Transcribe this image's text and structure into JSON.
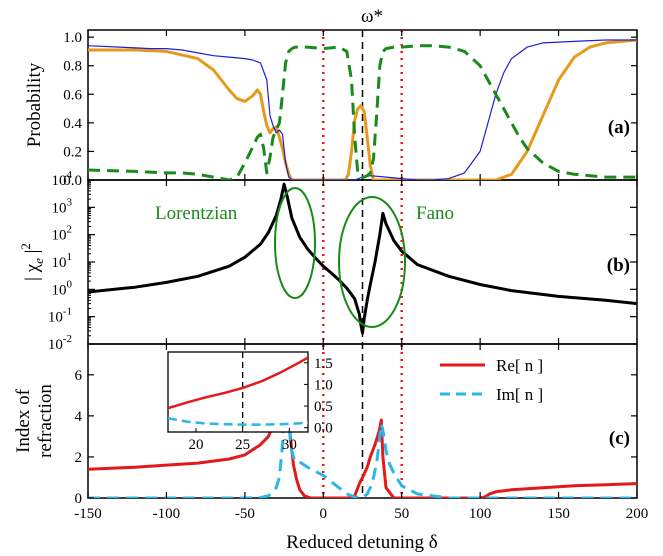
{
  "figure": {
    "x_label": "Reduced detuning δ",
    "omega_marker": "ω*",
    "x_ticks": [
      "-150",
      "-100",
      "-50",
      "0",
      "50",
      "100",
      "150",
      "200"
    ],
    "colors": {
      "orange": "#e69a1b",
      "blue": "#1f1fd6",
      "green": "#1a8a1a",
      "black": "#000000",
      "red": "#e31a1c",
      "cyan": "#29b7e8",
      "dotted_red": "#e31a1c"
    }
  },
  "chart_data": [
    {
      "panel_label": "(a)",
      "type": "line",
      "ylabel": "Probability",
      "xlim": [
        -150,
        200
      ],
      "ylim": [
        0,
        1.05
      ],
      "y_ticks": [
        "0.0",
        "0.2",
        "0.4",
        "0.6",
        "0.8",
        "1.0"
      ],
      "vlines_dotted": [
        0,
        50
      ],
      "vline_dashed": 25,
      "series": [
        {
          "color": "orange",
          "style": "solid-thick",
          "x": [
            -150,
            -120,
            -100,
            -80,
            -70,
            -60,
            -55,
            -50,
            -45,
            -42,
            -40,
            -38,
            -36,
            -34,
            -32,
            -30,
            -28,
            -26,
            -24,
            -22,
            -20,
            -15,
            -10,
            -5,
            0,
            5,
            10,
            14,
            16,
            18,
            20,
            22,
            24,
            26,
            28,
            30,
            32,
            34,
            36,
            40,
            50,
            60,
            80,
            100,
            110,
            120,
            130,
            140,
            150,
            160,
            170,
            180,
            200
          ],
          "y": [
            0.91,
            0.91,
            0.9,
            0.85,
            0.77,
            0.63,
            0.57,
            0.55,
            0.59,
            0.63,
            0.6,
            0.48,
            0.38,
            0.33,
            0.36,
            0.37,
            0.3,
            0.22,
            0.12,
            0.04,
            0.0,
            0.0,
            0.0,
            0.0,
            0.0,
            0.0,
            0.0,
            0.0,
            0.04,
            0.2,
            0.42,
            0.5,
            0.52,
            0.48,
            0.3,
            0.1,
            0.0,
            0.0,
            0.0,
            0.0,
            0.0,
            0.0,
            0.0,
            0.0,
            0.0,
            0.04,
            0.2,
            0.45,
            0.7,
            0.86,
            0.93,
            0.96,
            0.98
          ]
        },
        {
          "color": "blue",
          "style": "solid-thin",
          "x": [
            -150,
            -130,
            -110,
            -100,
            -90,
            -80,
            -70,
            -60,
            -50,
            -45,
            -40,
            -36,
            -34,
            -32,
            -30,
            -28,
            -26,
            -24,
            -22,
            -20,
            -10,
            0,
            10,
            20,
            25,
            30,
            40,
            50,
            60,
            70,
            80,
            90,
            100,
            105,
            110,
            115,
            120,
            130,
            140,
            160,
            180,
            200
          ],
          "y": [
            0.94,
            0.93,
            0.92,
            0.92,
            0.91,
            0.89,
            0.87,
            0.86,
            0.85,
            0.84,
            0.82,
            0.7,
            0.45,
            0.38,
            0.33,
            0.35,
            0.32,
            0.12,
            0.02,
            0.0,
            0.0,
            0.0,
            0.0,
            0.0,
            0.02,
            0.03,
            0.02,
            0.01,
            0.0,
            0.0,
            0.01,
            0.05,
            0.2,
            0.4,
            0.6,
            0.75,
            0.85,
            0.93,
            0.96,
            0.97,
            0.98,
            0.98
          ]
        },
        {
          "color": "green",
          "style": "dashed",
          "x": [
            -150,
            -120,
            -100,
            -90,
            -80,
            -70,
            -60,
            -55,
            -50,
            -45,
            -42,
            -40,
            -38,
            -36,
            -34,
            -32,
            -30,
            -28,
            -26,
            -24,
            -22,
            -20,
            -18,
            -15,
            -10,
            0,
            10,
            15,
            18,
            20,
            22,
            24,
            26,
            28,
            30,
            32,
            34,
            36,
            38,
            40,
            45,
            50,
            60,
            70,
            80,
            90,
            100,
            110,
            115,
            120,
            125,
            130,
            140,
            150,
            160,
            170,
            180,
            200
          ],
          "y": [
            0.07,
            0.06,
            0.05,
            0.05,
            0.04,
            0.02,
            0.0,
            0.02,
            0.12,
            0.23,
            0.3,
            0.32,
            0.22,
            0.05,
            0.16,
            0.3,
            0.35,
            0.4,
            0.6,
            0.82,
            0.9,
            0.92,
            0.93,
            0.93,
            0.93,
            0.92,
            0.93,
            0.9,
            0.7,
            0.3,
            0.05,
            0.02,
            0.02,
            0.03,
            0.05,
            0.15,
            0.45,
            0.8,
            0.9,
            0.92,
            0.93,
            0.93,
            0.94,
            0.94,
            0.93,
            0.9,
            0.8,
            0.6,
            0.5,
            0.4,
            0.3,
            0.22,
            0.12,
            0.06,
            0.04,
            0.03,
            0.02,
            0.02
          ]
        }
      ]
    },
    {
      "panel_label": "(b)",
      "type": "line",
      "ylabel": "|χe|²",
      "ylabel_parts": {
        "base": "| χ",
        "sub": "e",
        "tail": " |",
        "sup": "2"
      },
      "y_scale": "log",
      "xlim": [
        -150,
        200
      ],
      "ylim": [
        0.01,
        10000
      ],
      "y_ticks": [
        "10^-2",
        "10^-1",
        "10^0",
        "10^1",
        "10^2",
        "10^3",
        "10^4"
      ],
      "annotations": [
        "Lorentzian",
        "Fano"
      ],
      "series": [
        {
          "color": "black",
          "style": "solid-thick",
          "x": [
            -150,
            -120,
            -100,
            -80,
            -60,
            -50,
            -40,
            -35,
            -30,
            -27,
            -25,
            -23,
            -20,
            -15,
            -10,
            -5,
            0,
            5,
            10,
            15,
            20,
            23,
            24,
            25,
            26,
            28,
            30,
            33,
            36,
            38,
            40,
            45,
            50,
            60,
            80,
            100,
            120,
            150,
            180,
            200
          ],
          "y": [
            0.8,
            1.2,
            1.8,
            3.0,
            7.0,
            15,
            45,
            120,
            500,
            2000,
            7000,
            2500,
            400,
            80,
            30,
            14,
            7,
            4,
            2.2,
            1.1,
            0.45,
            0.12,
            0.05,
            0.025,
            0.08,
            0.4,
            1.5,
            10,
            100,
            600,
            250,
            60,
            25,
            8,
            3,
            1.5,
            0.9,
            0.55,
            0.4,
            0.3
          ]
        }
      ]
    },
    {
      "panel_label": "(c)",
      "type": "line",
      "ylabel": "Index of\nrefraction",
      "xlim": [
        -150,
        200
      ],
      "ylim": [
        0,
        7.5
      ],
      "y_ticks": [
        "0",
        "2",
        "4",
        "6"
      ],
      "legend": [
        "Re[ n ]",
        "Im[ n ]"
      ],
      "series": [
        {
          "name": "Re[ n ]",
          "color": "red",
          "style": "solid",
          "x": [
            -150,
            -120,
            -100,
            -80,
            -60,
            -50,
            -40,
            -35,
            -30,
            -27,
            -25,
            -24,
            -23,
            -21,
            -19,
            -17,
            -15,
            -12,
            -8,
            -4,
            0,
            4,
            8,
            12,
            16,
            20,
            23,
            25,
            28,
            30,
            33,
            35,
            36,
            37,
            38,
            40,
            45,
            50,
            60,
            70,
            80,
            90,
            100,
            103,
            106,
            110,
            120,
            140,
            160,
            180,
            200
          ],
          "y": [
            1.4,
            1.5,
            1.6,
            1.7,
            1.9,
            2.1,
            2.6,
            3.0,
            3.9,
            4.8,
            5.9,
            7.0,
            5.2,
            3.0,
            1.6,
            0.9,
            0.4,
            0.1,
            0.0,
            0.0,
            0.0,
            0.0,
            0.0,
            0.0,
            0.0,
            0.1,
            0.7,
            1.0,
            1.5,
            2.0,
            2.6,
            3.1,
            3.4,
            3.8,
            2.0,
            0.5,
            0.0,
            0.0,
            0.0,
            0.0,
            0.0,
            0.0,
            0.0,
            0.05,
            0.2,
            0.3,
            0.4,
            0.5,
            0.6,
            0.65,
            0.7
          ]
        },
        {
          "name": "Im[ n ]",
          "color": "cyan",
          "style": "dashed",
          "x": [
            -150,
            -100,
            -60,
            -50,
            -40,
            -35,
            -30,
            -28,
            -26,
            -25,
            -24,
            -23,
            -22,
            -21,
            -20,
            -19,
            -18,
            -16,
            -14,
            -12,
            -10,
            -5,
            0,
            5,
            10,
            15,
            20,
            25,
            28,
            30,
            32,
            34,
            35,
            36,
            37,
            38,
            39,
            40,
            42,
            45,
            50,
            60,
            80,
            100,
            120,
            150,
            200
          ],
          "y": [
            0.0,
            0.0,
            0.0,
            0.0,
            0.02,
            0.1,
            0.5,
            1.0,
            2.6,
            4.5,
            6.5,
            5.0,
            3.8,
            2.8,
            2.3,
            2.0,
            1.8,
            1.8,
            1.7,
            1.6,
            1.5,
            1.3,
            1.1,
            0.8,
            0.5,
            0.2,
            0.05,
            0.0,
            0.2,
            0.5,
            1.0,
            1.7,
            2.3,
            3.0,
            3.6,
            3.3,
            2.8,
            2.3,
            1.7,
            1.2,
            0.6,
            0.2,
            0.0,
            0.0,
            0.0,
            0.0,
            0.0
          ]
        }
      ],
      "inset": {
        "type": "line",
        "xlim": [
          17,
          32
        ],
        "ylim": [
          -0.1,
          1.75
        ],
        "x_ticks": [
          "20",
          "25",
          "30"
        ],
        "y_ticks": [
          "0.0",
          "0.5",
          "1.0",
          "1.5"
        ],
        "vline_dashed": 25,
        "series": [
          {
            "name": "Re[ n ]",
            "color": "red",
            "style": "solid",
            "x": [
              17,
              19,
              21,
              23,
              25,
              27,
              29,
              31,
              32
            ],
            "y": [
              0.45,
              0.58,
              0.7,
              0.8,
              0.92,
              1.07,
              1.27,
              1.5,
              1.62
            ]
          },
          {
            "name": "Im[ n ]",
            "color": "cyan",
            "style": "dashed",
            "x": [
              17,
              19,
              21,
              23,
              25,
              27,
              29,
              31,
              32
            ],
            "y": [
              0.22,
              0.14,
              0.1,
              0.08,
              0.07,
              0.07,
              0.08,
              0.1,
              0.12
            ]
          }
        ]
      }
    }
  ]
}
